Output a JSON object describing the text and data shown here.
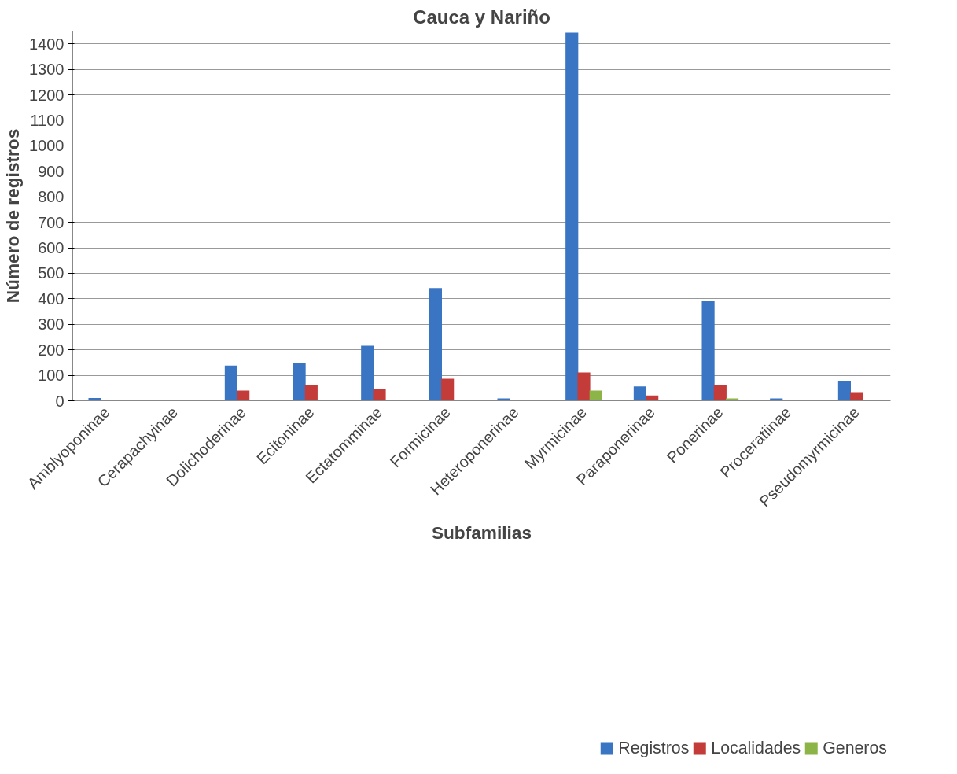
{
  "chart_data": {
    "type": "bar",
    "title": "Cauca y Nariño",
    "xlabel": "Subfamilias",
    "ylabel": "Número de registros",
    "categories": [
      "Amblyoponinae",
      "Cerapachyinae",
      "Dolichoderinae",
      "Ecitoninae",
      "Ectatomminae",
      "Formicinae",
      "Heteroponerinae",
      "Myrmicinae",
      "Paraponerinae",
      "Ponerinae",
      "Proceratiinae",
      "Pseudomyrmicinae"
    ],
    "series": [
      {
        "name": "Registros",
        "color": "#3a75c4",
        "values": [
          11,
          0,
          138,
          147,
          216,
          442,
          9,
          1444,
          56,
          390,
          9,
          76
        ]
      },
      {
        "name": "Localidades",
        "color": "#c43c39",
        "values": [
          5,
          0,
          40,
          62,
          46,
          86,
          5,
          111,
          21,
          62,
          5,
          34
        ]
      },
      {
        "name": "Generos",
        "color": "#8db446",
        "values": [
          0,
          0,
          5,
          5,
          0,
          5,
          0,
          40,
          0,
          9,
          0,
          0
        ]
      }
    ],
    "ylim": [
      0,
      1450
    ],
    "yticks": [
      0,
      100,
      200,
      300,
      400,
      500,
      600,
      700,
      800,
      900,
      1000,
      1100,
      1200,
      1300,
      1400
    ],
    "grid": "y",
    "legend": "bottom"
  }
}
